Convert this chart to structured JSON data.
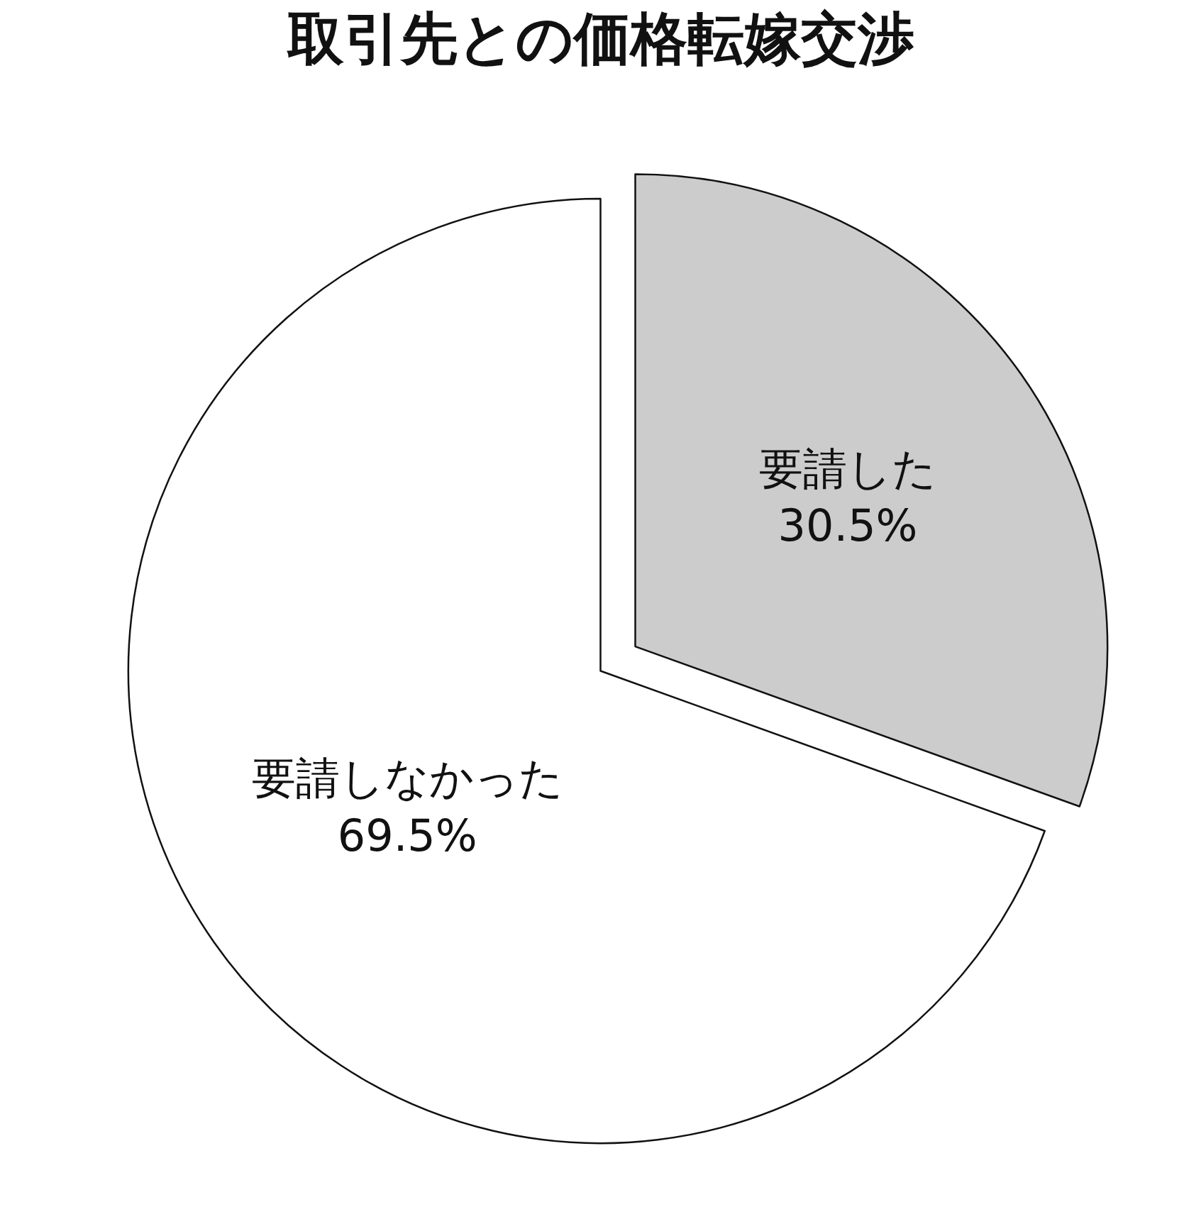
{
  "chart_data": {
    "type": "pie",
    "title": "取引先との価格転嫁交渉",
    "categories": [
      "要請した",
      "要請しなかった"
    ],
    "values": [
      30.5,
      69.5
    ],
    "colors": [
      "#cccccc",
      "#ffffff"
    ],
    "value_labels": [
      "30.5%",
      "69.5%"
    ],
    "legend": false
  }
}
